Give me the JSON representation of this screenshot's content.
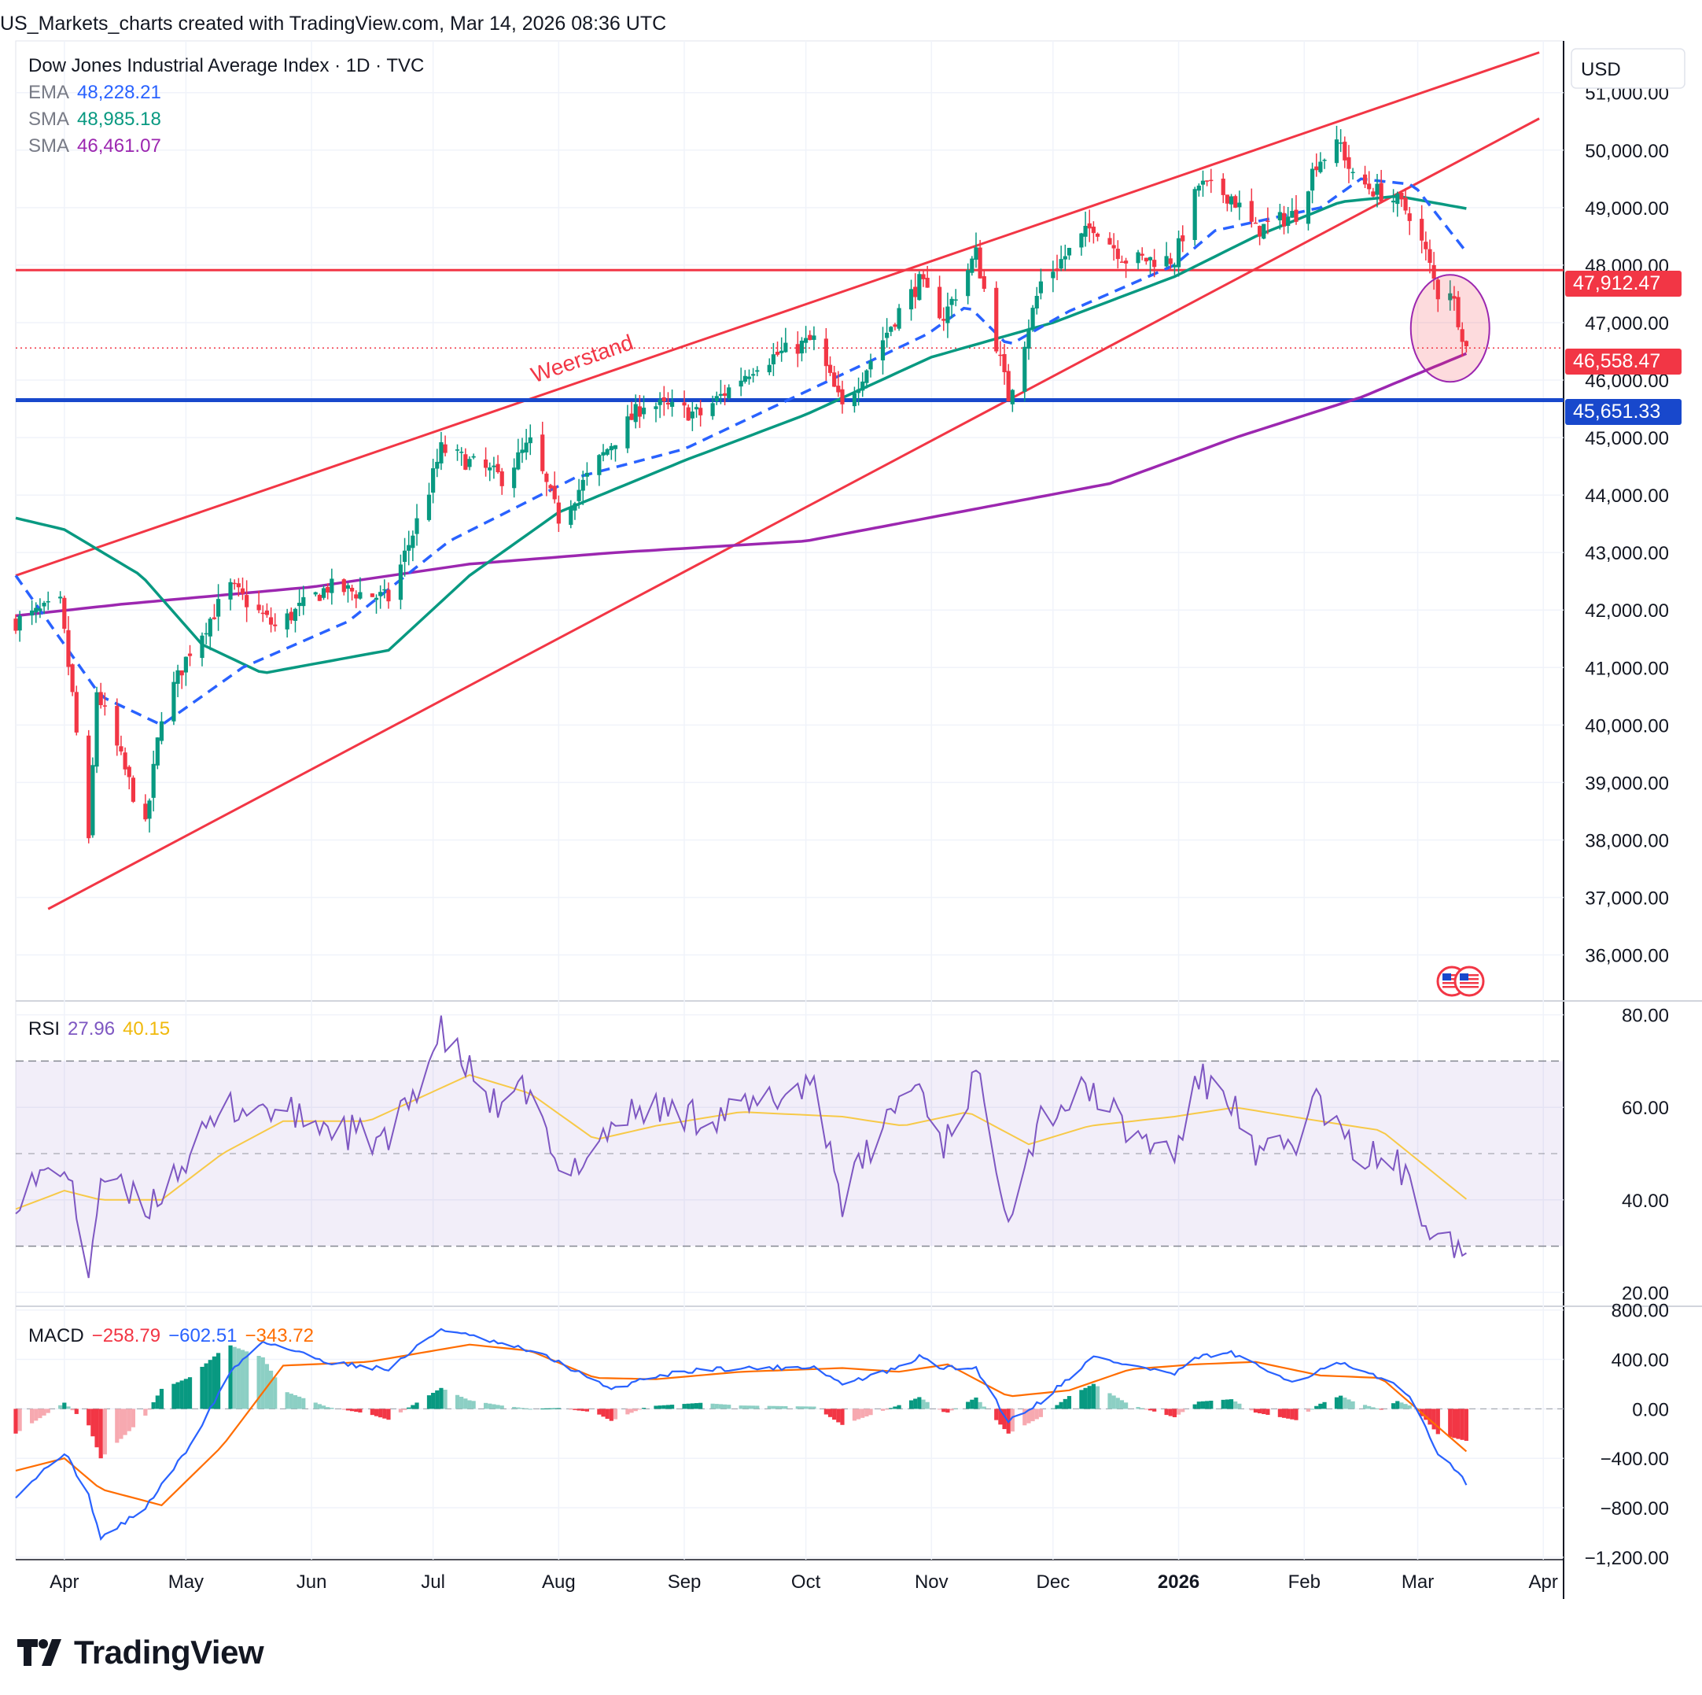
{
  "header": "US_Markets_charts created with TradingView.com, Mar 14, 2026 08:36 UTC",
  "legend": {
    "title": "Dow Jones Industrial Average Index · 1D · TVC",
    "ema_label": "EMA",
    "ema_value": "48,228.21",
    "sma1_label": "SMA",
    "sma1_value": "48,985.18",
    "sma2_label": "SMA",
    "sma2_value": "46,461.07",
    "rsi_label": "RSI",
    "rsi_value": "27.96",
    "rsi_ma": "40.15",
    "macd_label": "MACD",
    "macd_hist": "−258.79",
    "macd_line": "−602.51",
    "macd_signal": "−343.72"
  },
  "currency": "USD",
  "annotation": "Weerstand",
  "logo_text": "TradingView",
  "price_badges": {
    "resistance": "47,912.47",
    "last": "46,558.47",
    "support": "45,651.33"
  },
  "colors": {
    "up": "#089981",
    "down": "#f23645",
    "ema": "#2962ff",
    "sma_fast": "#089981",
    "sma_slow": "#9c27b0",
    "trendline": "#f23645",
    "support": "#1848cc",
    "rsi": "#7e57c2",
    "rsi_ma": "#f7c948",
    "macd": "#2962ff",
    "signal": "#ff6d00"
  },
  "chart_data": [
    {
      "type": "candlestick",
      "title": "Dow Jones Industrial Average Index · 1D · TVC",
      "y_axis": [
        "51,000.00",
        "50,000.00",
        "49,000.00",
        "48,000.00",
        "47,000.00",
        "46,000.00",
        "45,000.00",
        "44,000.00",
        "43,000.00",
        "42,000.00",
        "41,000.00",
        "40,000.00",
        "39,000.00",
        "38,000.00",
        "37,000.00",
        "36,000.00"
      ],
      "x_axis": [
        "Apr",
        "May",
        "Jun",
        "Jul",
        "Aug",
        "Sep",
        "Oct",
        "Nov",
        "Dec",
        "2026",
        "Feb",
        "Mar",
        "Apr"
      ],
      "ylim": [
        35200,
        51900
      ],
      "close_anchors": [
        [
          "2025-03-20",
          41800
        ],
        [
          "2025-03-31",
          42100
        ],
        [
          "2025-04-03",
          40500
        ],
        [
          "2025-04-07",
          37900
        ],
        [
          "2025-04-09",
          40600
        ],
        [
          "2025-04-21",
          38200
        ],
        [
          "2025-04-25",
          40200
        ],
        [
          "2025-05-02",
          41300
        ],
        [
          "2025-05-12",
          42400
        ],
        [
          "2025-05-23",
          41700
        ],
        [
          "2025-06-05",
          42400
        ],
        [
          "2025-06-20",
          42200
        ],
        [
          "2025-06-30",
          44100
        ],
        [
          "2025-07-03",
          44800
        ],
        [
          "2025-07-18",
          44300
        ],
        [
          "2025-07-25",
          44900
        ],
        [
          "2025-08-01",
          43600
        ],
        [
          "2025-08-14",
          44900
        ],
        [
          "2025-08-22",
          45600
        ],
        [
          "2025-09-05",
          45400
        ],
        [
          "2025-09-19",
          46300
        ],
        [
          "2025-10-03",
          46700
        ],
        [
          "2025-10-10",
          45500
        ],
        [
          "2025-10-24",
          47200
        ],
        [
          "2025-10-29",
          47700
        ],
        [
          "2025-11-04",
          47100
        ],
        [
          "2025-11-12",
          48200
        ],
        [
          "2025-11-20",
          45700
        ],
        [
          "2025-11-28",
          47700
        ],
        [
          "2025-12-11",
          48700
        ],
        [
          "2025-12-19",
          48100
        ],
        [
          "2025-12-31",
          48100
        ],
        [
          "2026-01-06",
          49400
        ],
        [
          "2026-01-14",
          49200
        ],
        [
          "2026-01-20",
          48600
        ],
        [
          "2026-01-30",
          48900
        ],
        [
          "2026-02-04",
          49800
        ],
        [
          "2026-02-10",
          50100
        ],
        [
          "2026-02-13",
          49500
        ],
        [
          "2026-02-24",
          49100
        ],
        [
          "2026-02-27",
          48900
        ],
        [
          "2026-03-03",
          48200
        ],
        [
          "2026-03-06",
          47500
        ],
        [
          "2026-03-09",
          47600
        ],
        [
          "2026-03-13",
          46558
        ]
      ],
      "ema": [
        [
          "2025-03-20",
          42600
        ],
        [
          "2025-04-10",
          40500
        ],
        [
          "2025-04-25",
          40000
        ],
        [
          "2025-05-15",
          41000
        ],
        [
          "2025-06-10",
          41800
        ],
        [
          "2025-07-05",
          43200
        ],
        [
          "2025-08-05",
          44300
        ],
        [
          "2025-09-01",
          44800
        ],
        [
          "2025-10-01",
          45800
        ],
        [
          "2025-10-31",
          46800
        ],
        [
          "2025-11-10",
          47300
        ],
        [
          "2025-11-20",
          46600
        ],
        [
          "2025-12-05",
          47200
        ],
        [
          "2025-12-31",
          48000
        ],
        [
          "2026-01-10",
          48600
        ],
        [
          "2026-02-05",
          49000
        ],
        [
          "2026-02-15",
          49500
        ],
        [
          "2026-02-28",
          49400
        ],
        [
          "2026-03-13",
          48228
        ]
      ],
      "sma_fast": [
        [
          "2025-03-20",
          43600
        ],
        [
          "2025-04-01",
          43400
        ],
        [
          "2025-04-20",
          42600
        ],
        [
          "2025-05-05",
          41400
        ],
        [
          "2025-05-20",
          40900
        ],
        [
          "2025-06-20",
          41300
        ],
        [
          "2025-07-10",
          42600
        ],
        [
          "2025-08-01",
          43700
        ],
        [
          "2025-09-01",
          44600
        ],
        [
          "2025-10-01",
          45400
        ],
        [
          "2025-11-01",
          46400
        ],
        [
          "2025-12-01",
          47000
        ],
        [
          "2025-12-31",
          47800
        ],
        [
          "2026-01-20",
          48500
        ],
        [
          "2026-02-10",
          49100
        ],
        [
          "2026-02-24",
          49200
        ],
        [
          "2026-03-13",
          48985
        ]
      ],
      "sma_slow": [
        [
          "2025-03-20",
          41900
        ],
        [
          "2025-04-15",
          42100
        ],
        [
          "2025-06-01",
          42400
        ],
        [
          "2025-07-10",
          42800
        ],
        [
          "2025-08-15",
          43000
        ],
        [
          "2025-10-01",
          43200
        ],
        [
          "2025-11-15",
          43800
        ],
        [
          "2025-12-15",
          44200
        ],
        [
          "2026-01-15",
          45000
        ],
        [
          "2026-02-15",
          45700
        ],
        [
          "2026-03-13",
          46461
        ]
      ],
      "trendlines": [
        [
          [
            "2025-03-20",
            42600
          ],
          [
            "2026-03-31",
            51700
          ]
        ],
        [
          [
            "2025-03-28",
            36800
          ],
          [
            "2026-03-31",
            50550
          ]
        ]
      ],
      "horizontal_levels": [
        47912.47,
        45651.33
      ],
      "last_price": 46558.47
    },
    {
      "type": "line",
      "title": "RSI",
      "y_axis": [
        "80.00",
        "60.00",
        "40.00",
        "20.00"
      ],
      "ylim": [
        17,
        83
      ],
      "bands": [
        30,
        50,
        70
      ],
      "rsi": [
        [
          "2025-03-20",
          41
        ],
        [
          "2025-04-01",
          48
        ],
        [
          "2025-04-07",
          25
        ],
        [
          "2025-04-10",
          45
        ],
        [
          "2025-04-21",
          38
        ],
        [
          "2025-05-02",
          50
        ],
        [
          "2025-05-12",
          60
        ],
        [
          "2025-05-20",
          60
        ],
        [
          "2025-06-05",
          56
        ],
        [
          "2025-06-20",
          52
        ],
        [
          "2025-07-03",
          76
        ],
        [
          "2025-07-18",
          58
        ],
        [
          "2025-07-25",
          65
        ],
        [
          "2025-08-01",
          44
        ],
        [
          "2025-08-14",
          56
        ],
        [
          "2025-08-22",
          60
        ],
        [
          "2025-09-05",
          58
        ],
        [
          "2025-09-19",
          60
        ],
        [
          "2025-10-03",
          66
        ],
        [
          "2025-10-10",
          40
        ],
        [
          "2025-10-24",
          62
        ],
        [
          "2025-10-29",
          65
        ],
        [
          "2025-11-04",
          52
        ],
        [
          "2025-11-12",
          67
        ],
        [
          "2025-11-20",
          38
        ],
        [
          "2025-11-28",
          58
        ],
        [
          "2025-12-11",
          64
        ],
        [
          "2025-12-19",
          55
        ],
        [
          "2025-12-31",
          50
        ],
        [
          "2026-01-06",
          66
        ],
        [
          "2026-01-14",
          62
        ],
        [
          "2026-01-20",
          48
        ],
        [
          "2026-01-30",
          53
        ],
        [
          "2026-02-04",
          62
        ],
        [
          "2026-02-10",
          54
        ],
        [
          "2026-02-13",
          50
        ],
        [
          "2026-02-24",
          48
        ],
        [
          "2026-02-27",
          42
        ],
        [
          "2026-03-03",
          35
        ],
        [
          "2026-03-06",
          36
        ],
        [
          "2026-03-13",
          27.96
        ]
      ],
      "rsi_ma": [
        [
          "2025-03-20",
          38
        ],
        [
          "2025-04-01",
          42
        ],
        [
          "2025-04-10",
          40
        ],
        [
          "2025-04-25",
          40
        ],
        [
          "2025-05-10",
          50
        ],
        [
          "2025-05-25",
          57
        ],
        [
          "2025-06-15",
          57
        ],
        [
          "2025-07-10",
          67
        ],
        [
          "2025-07-25",
          63
        ],
        [
          "2025-08-10",
          53
        ],
        [
          "2025-08-25",
          56
        ],
        [
          "2025-09-15",
          59
        ],
        [
          "2025-10-10",
          58
        ],
        [
          "2025-10-25",
          56
        ],
        [
          "2025-11-10",
          59
        ],
        [
          "2025-11-25",
          52
        ],
        [
          "2025-12-10",
          56
        ],
        [
          "2025-12-31",
          58
        ],
        [
          "2026-01-15",
          60
        ],
        [
          "2026-02-05",
          57
        ],
        [
          "2026-02-20",
          55
        ],
        [
          "2026-03-13",
          40.15
        ]
      ]
    },
    {
      "type": "line",
      "title": "MACD",
      "y_axis": [
        "800.00",
        "400.00",
        "0.00",
        "−400.00",
        "−800.00",
        "−1,200.00"
      ],
      "ylim": [
        -1220,
        830
      ],
      "macd": [
        [
          "2025-03-20",
          -700
        ],
        [
          "2025-04-01",
          -350
        ],
        [
          "2025-04-07",
          -700
        ],
        [
          "2025-04-10",
          -1050
        ],
        [
          "2025-04-21",
          -800
        ],
        [
          "2025-05-02",
          -300
        ],
        [
          "2025-05-12",
          300
        ],
        [
          "2025-05-20",
          550
        ],
        [
          "2025-06-05",
          380
        ],
        [
          "2025-06-20",
          320
        ],
        [
          "2025-07-03",
          650
        ],
        [
          "2025-07-18",
          520
        ],
        [
          "2025-07-25",
          470
        ],
        [
          "2025-08-01",
          380
        ],
        [
          "2025-08-14",
          150
        ],
        [
          "2025-08-22",
          250
        ],
        [
          "2025-09-05",
          320
        ],
        [
          "2025-09-19",
          330
        ],
        [
          "2025-10-03",
          340
        ],
        [
          "2025-10-10",
          200
        ],
        [
          "2025-10-24",
          330
        ],
        [
          "2025-10-29",
          420
        ],
        [
          "2025-11-04",
          330
        ],
        [
          "2025-11-12",
          330
        ],
        [
          "2025-11-20",
          -100
        ],
        [
          "2025-11-28",
          60
        ],
        [
          "2025-12-11",
          420
        ],
        [
          "2025-12-19",
          360
        ],
        [
          "2025-12-31",
          280
        ],
        [
          "2026-01-06",
          420
        ],
        [
          "2026-01-14",
          450
        ],
        [
          "2026-01-20",
          350
        ],
        [
          "2026-01-30",
          220
        ],
        [
          "2026-02-04",
          300
        ],
        [
          "2026-02-10",
          370
        ],
        [
          "2026-02-13",
          320
        ],
        [
          "2026-02-24",
          200
        ],
        [
          "2026-02-27",
          80
        ],
        [
          "2026-03-03",
          -150
        ],
        [
          "2026-03-06",
          -350
        ],
        [
          "2026-03-13",
          -602.51
        ]
      ],
      "signal": [
        [
          "2025-03-20",
          -500
        ],
        [
          "2025-04-01",
          -400
        ],
        [
          "2025-04-10",
          -650
        ],
        [
          "2025-04-25",
          -780
        ],
        [
          "2025-05-10",
          -300
        ],
        [
          "2025-05-25",
          350
        ],
        [
          "2025-06-15",
          380
        ],
        [
          "2025-07-10",
          520
        ],
        [
          "2025-07-25",
          470
        ],
        [
          "2025-08-10",
          250
        ],
        [
          "2025-08-25",
          240
        ],
        [
          "2025-09-15",
          300
        ],
        [
          "2025-10-10",
          330
        ],
        [
          "2025-10-24",
          300
        ],
        [
          "2025-11-05",
          360
        ],
        [
          "2025-11-20",
          100
        ],
        [
          "2025-12-05",
          150
        ],
        [
          "2025-12-20",
          320
        ],
        [
          "2026-01-05",
          360
        ],
        [
          "2026-01-20",
          380
        ],
        [
          "2026-02-05",
          270
        ],
        [
          "2026-02-20",
          250
        ],
        [
          "2026-03-13",
          -343.72
        ]
      ],
      "histogram_last": -258.79
    }
  ]
}
